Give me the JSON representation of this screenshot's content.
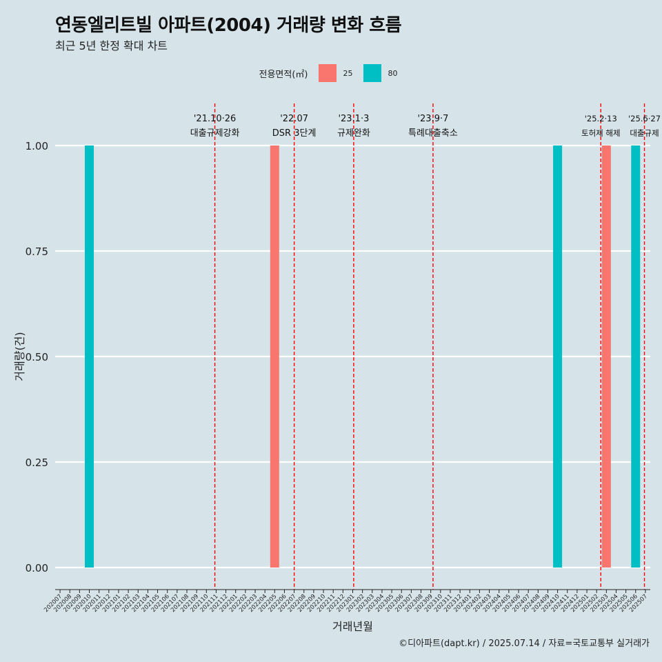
{
  "title": "연동엘리트빌 아파트(2004) 거래량 변화 흐름",
  "subtitle": "최근 5년 한정 확대 차트",
  "legend": {
    "title": "전용면적(㎡)",
    "items": [
      {
        "label": "25",
        "color": "#f8766d"
      },
      {
        "label": "80",
        "color": "#00bfc4"
      }
    ]
  },
  "caption": "©디아파트(dapt.kr) / 2025.07.14 / 자료=국토교통부 실거래가",
  "chart_data": {
    "type": "bar",
    "xlabel": "거래년월",
    "ylabel": "거래량(건)",
    "ylim": [
      0,
      1.08
    ],
    "yticks": [
      "0.00",
      "0.25",
      "0.50",
      "0.75",
      "1.00"
    ],
    "categories": [
      "202007",
      "202008",
      "202009",
      "202010",
      "202011",
      "202012",
      "202101",
      "202102",
      "202103",
      "202104",
      "202105",
      "202106",
      "202107",
      "202108",
      "202109",
      "202110",
      "202111",
      "202112",
      "202201",
      "202202",
      "202203",
      "202204",
      "202205",
      "202206",
      "202207",
      "202208",
      "202209",
      "202210",
      "202211",
      "202212",
      "202301",
      "202302",
      "202303",
      "202304",
      "202305",
      "202306",
      "202307",
      "202308",
      "202309",
      "202310",
      "202311",
      "202312",
      "202401",
      "202402",
      "202403",
      "202404",
      "202405",
      "202406",
      "202407",
      "202408",
      "202409",
      "202410",
      "202411",
      "202412",
      "202501",
      "202502",
      "202503",
      "202504",
      "202505",
      "202506",
      "202507"
    ],
    "series": [
      {
        "name": "25",
        "color": "#f8766d",
        "points": [
          {
            "x": "202205",
            "y": 1
          },
          {
            "x": "202503",
            "y": 1
          }
        ]
      },
      {
        "name": "80",
        "color": "#00bfc4",
        "points": [
          {
            "x": "202010",
            "y": 1
          },
          {
            "x": "202410",
            "y": 1
          },
          {
            "x": "202506",
            "y": 1
          }
        ]
      }
    ],
    "events": [
      {
        "x": 202110.87,
        "date": "'21.10·26",
        "label": "대출규제강화"
      },
      {
        "x": 202207.0,
        "date": "'22.07",
        "label": "DSR 3단계"
      },
      {
        "x": 202301.1,
        "date": "'23.1·3",
        "label": "규제완화"
      },
      {
        "x": 202309.23,
        "date": "'23.9·7",
        "label": "특례대출축소"
      },
      {
        "x": 202502.43,
        "date": "'25.2·13",
        "label": "토허제 해제"
      },
      {
        "x": 202506.9,
        "date": "'25.6·27",
        "label": "대출규제"
      }
    ],
    "grid": true,
    "legend_position": "top"
  }
}
